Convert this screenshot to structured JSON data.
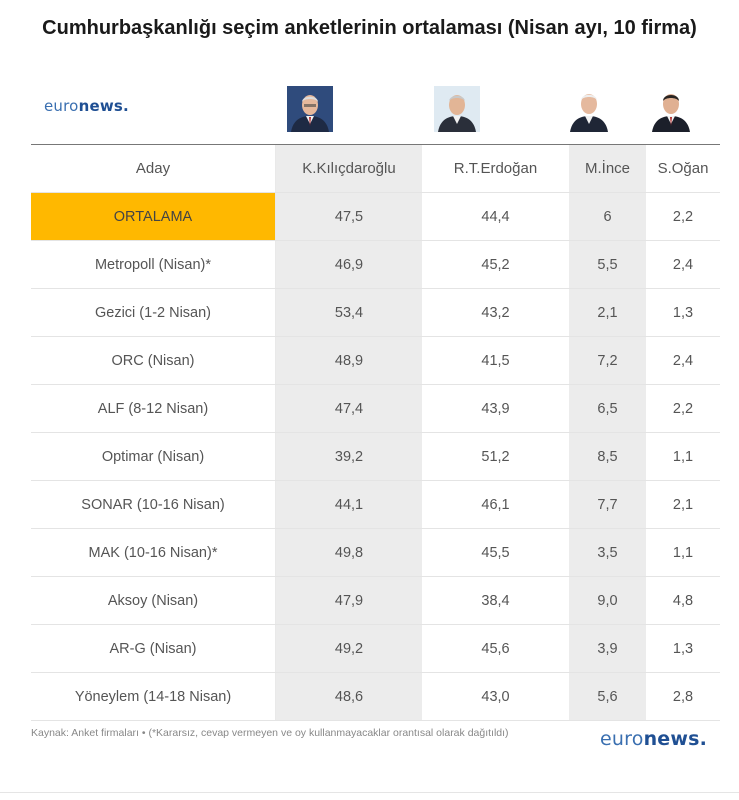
{
  "title": "Cumhurbaşkanlığı seçim anketlerinin ortalaması (Nisan ayı, 10 firma)",
  "logo": {
    "regular": "euro",
    "bold": "news",
    "dot": "."
  },
  "chart_data": {
    "type": "table",
    "columns": [
      "Aday",
      "K.Kılıçdaroğlu",
      "R.T.Erdoğan",
      "M.İnce",
      "S.Oğan"
    ],
    "rows": [
      {
        "label": "ORTALAMA",
        "values": [
          "47,5",
          "44,4",
          "6",
          "2,2"
        ]
      },
      {
        "label": "Metropoll (Nisan)*",
        "values": [
          "46,9",
          "45,2",
          "5,5",
          "2,4"
        ]
      },
      {
        "label": "Gezici (1-2 Nisan)",
        "values": [
          "53,4",
          "43,2",
          "2,1",
          "1,3"
        ]
      },
      {
        "label": "ORC (Nisan)",
        "values": [
          "48,9",
          "41,5",
          "7,2",
          "2,4"
        ]
      },
      {
        "label": "ALF (8-12 Nisan)",
        "values": [
          "47,4",
          "43,9",
          "6,5",
          "2,2"
        ]
      },
      {
        "label": "Optimar (Nisan)",
        "values": [
          "39,2",
          "51,2",
          "8,5",
          "1,1"
        ]
      },
      {
        "label": "SONAR (10-16 Nisan)",
        "values": [
          "44,1",
          "46,1",
          "7,7",
          "2,1"
        ]
      },
      {
        "label": "MAK (10-16 Nisan)*",
        "values": [
          "49,8",
          "45,5",
          "3,5",
          "1,1"
        ]
      },
      {
        "label": "Aksoy (Nisan)",
        "values": [
          "47,9",
          "38,4",
          "9,0",
          "4,8"
        ]
      },
      {
        "label": "AR-G (Nisan)",
        "values": [
          "49,2",
          "45,6",
          "3,9",
          "1,3"
        ]
      },
      {
        "label": "Yöneylem (14-18 Nisan)",
        "values": [
          "48,6",
          "43,0",
          "5,6",
          "2,8"
        ]
      }
    ],
    "highlight_color": "#ffb800"
  },
  "footnote": "Kaynak: Anket firmaları • (*Kararsız, cevap vermeyen ve oy kullanmayacaklar orantısal olarak dağıtıldı)"
}
